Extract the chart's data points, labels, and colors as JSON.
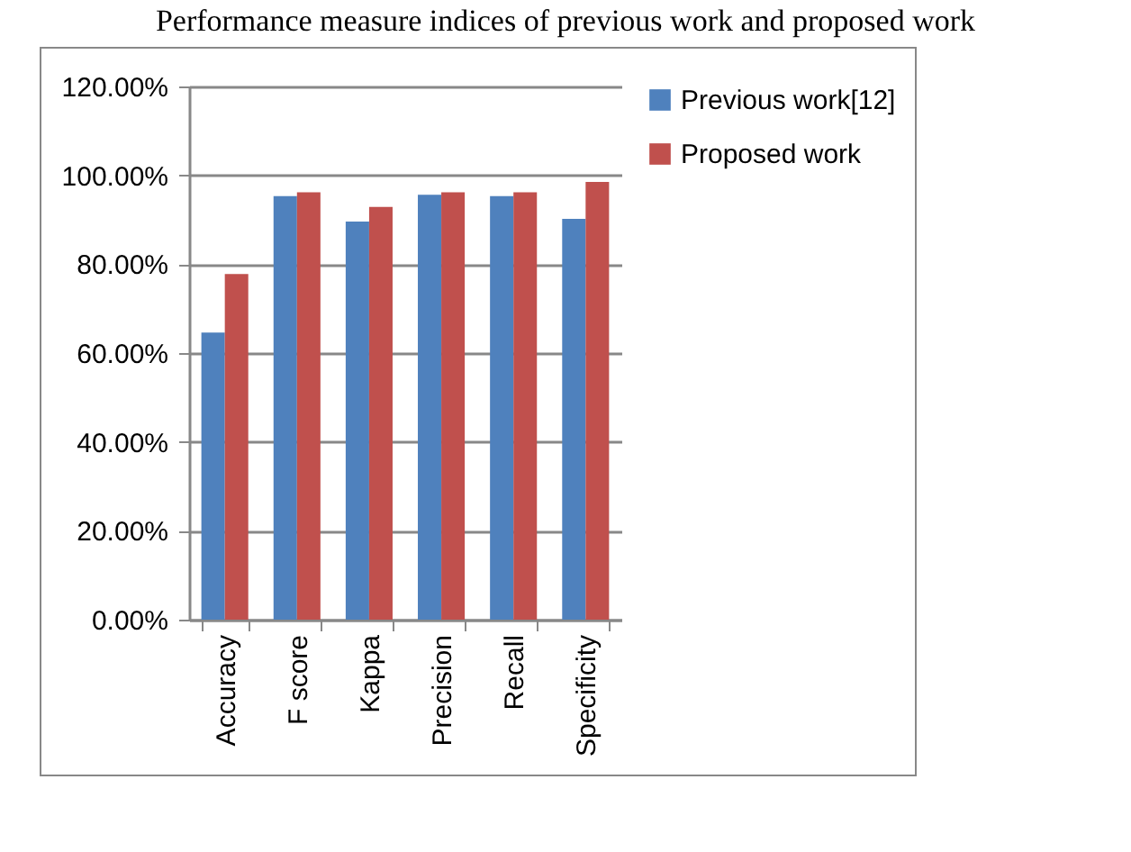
{
  "chart_data": {
    "type": "bar",
    "title": "Performance measure indices of previous work and proposed work",
    "categories": [
      "Accuracy",
      "F score",
      "Kappa",
      "Precision",
      "Recall",
      "Specificity"
    ],
    "series": [
      {
        "name": "Previous work[12]",
        "color": "#4f81bd",
        "values": [
          64.6,
          95.3,
          89.6,
          95.6,
          95.3,
          90.2
        ]
      },
      {
        "name": "Proposed work",
        "color": "#c0504d",
        "values": [
          77.8,
          96.2,
          92.9,
          96.2,
          96.2,
          98.5
        ]
      }
    ],
    "ylim": [
      0,
      120
    ],
    "yticks": [
      {
        "value": 0,
        "label": "0.00%"
      },
      {
        "value": 20,
        "label": "20.00%"
      },
      {
        "value": 40,
        "label": "40.00%"
      },
      {
        "value": 60,
        "label": "60.00%"
      },
      {
        "value": 80,
        "label": "80.00%"
      },
      {
        "value": 100,
        "label": "100.00%"
      },
      {
        "value": 120,
        "label": "120.00%"
      }
    ],
    "grid": "y",
    "legend": "right"
  }
}
